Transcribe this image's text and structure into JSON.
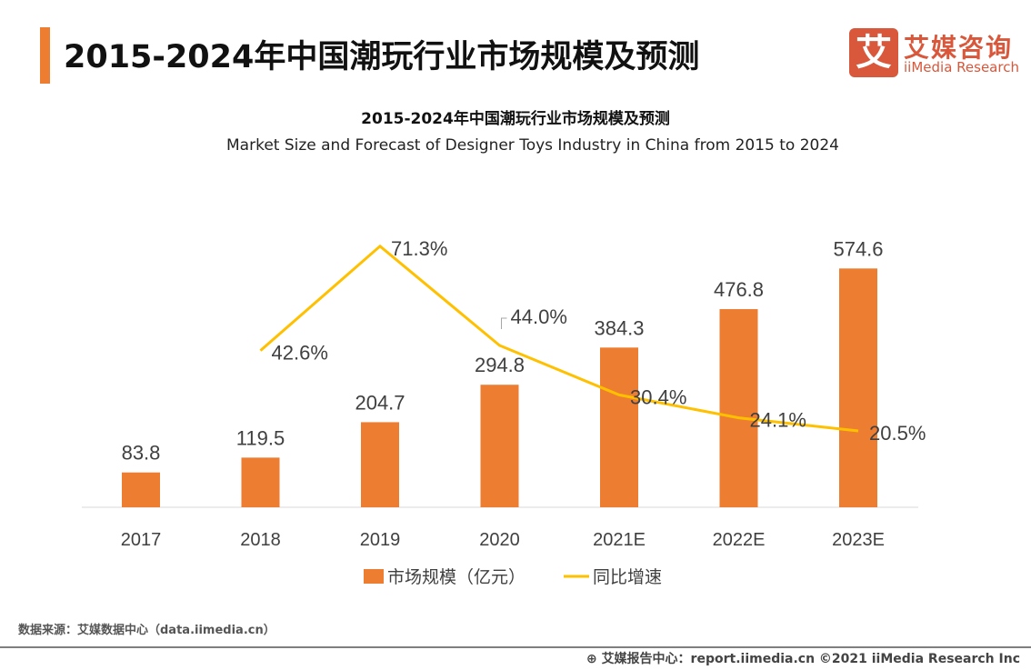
{
  "header": {
    "title": "2015-2024年中国潮玩行业市场规模及预测",
    "logo_cn": "艾媒咨询",
    "logo_en": "iiMedia Research",
    "logo_mark": "艾"
  },
  "chart_data": {
    "type": "bar+line",
    "title": "2015-2024年中国潮玩行业市场规模及预测",
    "subtitle": "Market Size and Forecast of Designer Toys Industry in China from 2015 to 2024",
    "categories": [
      "2017",
      "2018",
      "2019",
      "2020",
      "2021E",
      "2022E",
      "2023E"
    ],
    "series": [
      {
        "name": "市场规模（亿元）",
        "type": "bar",
        "color": "#ed7d31",
        "values": [
          83.8,
          119.5,
          204.7,
          294.8,
          384.3,
          476.8,
          574.6
        ],
        "labels": [
          "83.8",
          "119.5",
          "204.7",
          "294.8",
          "384.3",
          "476.8",
          "574.6"
        ]
      },
      {
        "name": "同比增速",
        "type": "line",
        "color": "#ffc000",
        "values": [
          null,
          42.6,
          71.3,
          44.0,
          30.4,
          24.1,
          20.5
        ],
        "labels": [
          "",
          "42.6%",
          "71.3%",
          "44.0%",
          "30.4%",
          "24.1%",
          "20.5%"
        ]
      }
    ],
    "ylim": [
      0,
      700
    ],
    "y2lim": [
      0,
      80
    ],
    "grid": false,
    "legend": "bottom"
  },
  "footer": {
    "source": "数据来源：艾媒数据中心（data.iimedia.cn）",
    "credit": "艾媒报告中心：report.iimedia.cn  ©2021  iiMedia Research  Inc"
  }
}
